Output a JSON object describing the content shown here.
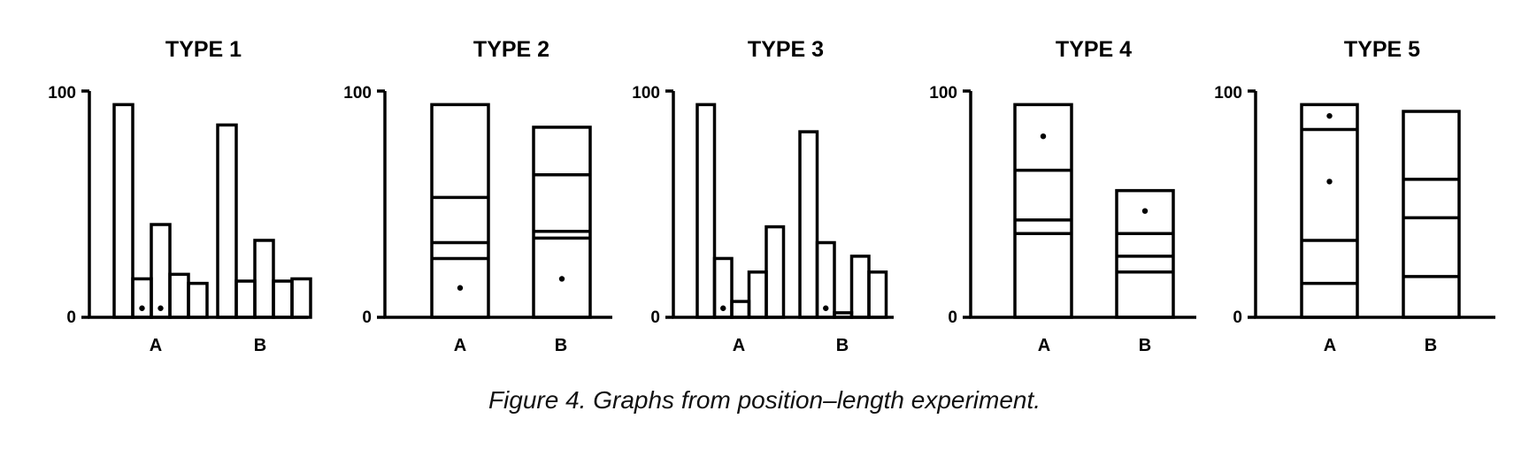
{
  "caption": "Figure 4. Graphs from position–length experiment.",
  "colors": {
    "ink": "#000000",
    "background": "#ffffff"
  },
  "chart_data": [
    {
      "type": "bar",
      "title": "TYPE 1",
      "ylim": [
        0,
        100
      ],
      "yticks": [
        0,
        100
      ],
      "groups": [
        "A",
        "B"
      ],
      "values": [
        [
          94,
          17,
          41,
          19,
          15
        ],
        [
          85,
          16,
          34,
          16,
          17
        ]
      ],
      "dots": [
        {
          "group": 0,
          "bar": 1,
          "y": 4
        },
        {
          "group": 0,
          "bar": 2,
          "y": 4
        }
      ]
    },
    {
      "type": "bar",
      "title": "TYPE 2",
      "ylim": [
        0,
        100
      ],
      "yticks": [
        0,
        100
      ],
      "groups": [
        "A",
        "B"
      ],
      "stack_boundaries": [
        [
          26,
          33,
          53,
          94
        ],
        [
          35,
          38,
          63,
          84
        ]
      ],
      "dots": [
        {
          "group": 0,
          "y": 13
        },
        {
          "group": 1,
          "y": 17
        }
      ]
    },
    {
      "type": "bar",
      "title": "TYPE 3",
      "ylim": [
        0,
        100
      ],
      "yticks": [
        0,
        100
      ],
      "groups": [
        "A",
        "B"
      ],
      "values": [
        [
          94,
          26,
          7,
          20,
          40
        ],
        [
          82,
          33,
          2,
          27,
          20
        ]
      ],
      "dots": [
        {
          "group": 0,
          "bar": 1,
          "y": 4
        },
        {
          "group": 1,
          "bar": 1,
          "y": 4
        }
      ]
    },
    {
      "type": "bar",
      "title": "TYPE 4",
      "ylim": [
        0,
        100
      ],
      "yticks": [
        0,
        100
      ],
      "groups": [
        "A",
        "B"
      ],
      "stack_boundaries": [
        [
          37,
          43,
          65,
          94
        ],
        [
          20,
          27,
          37,
          56
        ]
      ],
      "dots": [
        {
          "group": 0,
          "y": 80
        },
        {
          "group": 1,
          "y": 47
        }
      ]
    },
    {
      "type": "bar",
      "title": "TYPE 5",
      "ylim": [
        0,
        100
      ],
      "yticks": [
        0,
        100
      ],
      "groups": [
        "A",
        "B"
      ],
      "stack_boundaries": [
        [
          15,
          34,
          83,
          94
        ],
        [
          18,
          44,
          61,
          91
        ]
      ],
      "dots": [
        {
          "group": 0,
          "y": 89
        },
        {
          "group": 0,
          "y": 60
        }
      ]
    }
  ]
}
